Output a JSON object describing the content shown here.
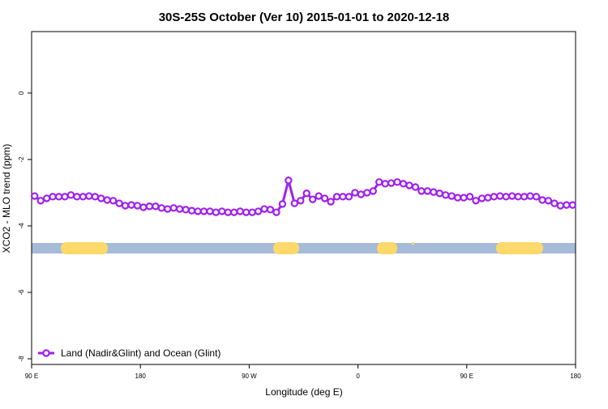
{
  "chart_data": {
    "type": "line",
    "title": "30S-25S October (Ver 10)   2015-01-01 to 2020-12-18",
    "x_label": "Longitude (deg E)",
    "y_label": "XCO2 - MLO trend (ppm)",
    "x": [
      92.5,
      97.5,
      102.5,
      107.5,
      112.5,
      117.5,
      122.5,
      127.5,
      132.5,
      137.5,
      142.5,
      147.5,
      152.5,
      157.5,
      162.5,
      167.5,
      172.5,
      177.5,
      182.5,
      187.5,
      192.5,
      197.5,
      202.5,
      207.5,
      212.5,
      217.5,
      222.5,
      227.5,
      232.5,
      237.5,
      242.5,
      247.5,
      252.5,
      257.5,
      262.5,
      267.5,
      272.5,
      277.5,
      282.5,
      287.5,
      292.5,
      297.5,
      302.5,
      307.5,
      312.5,
      317.5,
      322.5,
      327.5,
      332.5,
      337.5,
      342.5,
      347.5,
      352.5,
      357.5,
      362.5,
      367.5,
      372.5,
      377.5,
      382.5,
      387.5,
      392.5,
      397.5,
      402.5,
      407.5,
      412.5,
      417.5,
      422.5,
      427.5,
      432.5,
      437.5,
      442.5,
      447.5,
      452.5,
      457.5,
      462.5,
      467.5,
      472.5,
      477.5,
      482.5,
      487.5,
      492.5,
      497.5,
      502.5,
      507.5,
      512.5,
      517.5,
      522.5,
      527.5,
      532.5,
      537.5
    ],
    "series": [
      {
        "name": "Land (Nadir&Glint) and Ocean (Glint)",
        "color": "#a020f0",
        "values": [
          -3.1,
          -3.24,
          -3.17,
          -3.12,
          -3.12,
          -3.12,
          -3.07,
          -3.12,
          -3.12,
          -3.1,
          -3.12,
          -3.17,
          -3.22,
          -3.24,
          -3.32,
          -3.39,
          -3.37,
          -3.39,
          -3.44,
          -3.41,
          -3.41,
          -3.46,
          -3.49,
          -3.46,
          -3.49,
          -3.51,
          -3.54,
          -3.56,
          -3.56,
          -3.56,
          -3.59,
          -3.56,
          -3.59,
          -3.59,
          -3.56,
          -3.59,
          -3.59,
          -3.56,
          -3.49,
          -3.51,
          -3.59,
          -3.34,
          -2.63,
          -3.32,
          -3.24,
          -3.02,
          -3.2,
          -3.1,
          -3.17,
          -3.27,
          -3.12,
          -3.12,
          -3.12,
          -3.0,
          -3.05,
          -3.0,
          -2.95,
          -2.68,
          -2.73,
          -2.71,
          -2.68,
          -2.73,
          -2.78,
          -2.83,
          -2.95,
          -2.95,
          -2.98,
          -3.02,
          -3.07,
          -3.1,
          -3.15,
          -3.15,
          -3.12,
          -3.24,
          -3.17,
          -3.15,
          -3.12,
          -3.1,
          -3.12,
          -3.1,
          -3.12,
          -3.12,
          -3.1,
          -3.12,
          -3.22,
          -3.24,
          -3.32,
          -3.39,
          -3.37,
          -3.37
        ]
      }
    ],
    "xlim": [
      90,
      540
    ],
    "xticks": [
      {
        "value": 90,
        "label": "90 E"
      },
      180,
      {
        "value": 270,
        "label": "90 W"
      },
      {
        "value": 360,
        "label": "0"
      },
      {
        "value": 450,
        "label": "90 E"
      },
      {
        "value": 540,
        "label": "180"
      }
    ],
    "ylim": [
      -8.17,
      1.85
    ],
    "yticks": [
      0,
      -2,
      -4,
      -6,
      -8
    ],
    "legend": "bottom-left"
  }
}
